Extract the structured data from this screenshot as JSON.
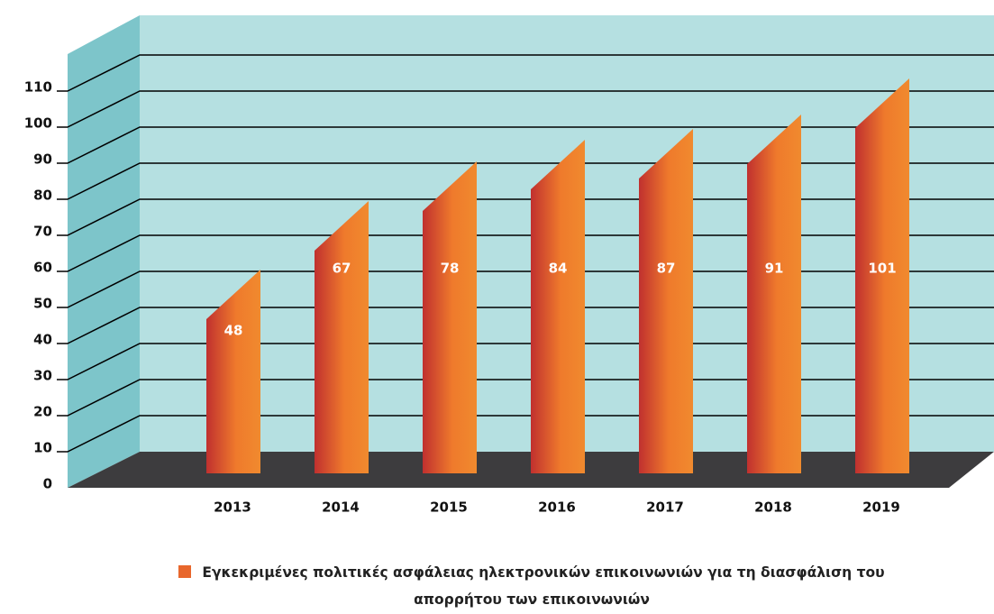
{
  "chart_data": {
    "type": "bar3d",
    "categories": [
      "2013",
      "2014",
      "2015",
      "2016",
      "2017",
      "2018",
      "2019"
    ],
    "series": [
      {
        "name": "Εγκεκριμένες πολιτικές ασφάλειας ηλεκτρονικών επικοινωνιών για τη διασφάλιση του απορρήτου των επικοινωνιών",
        "color": "#e8672c",
        "values": [
          48,
          67,
          78,
          84,
          87,
          91,
          101
        ]
      }
    ],
    "ylim": [
      0,
      110
    ],
    "yticks": [
      0,
      10,
      20,
      30,
      40,
      50,
      60,
      70,
      80,
      90,
      100,
      110
    ],
    "grid": true
  }
}
